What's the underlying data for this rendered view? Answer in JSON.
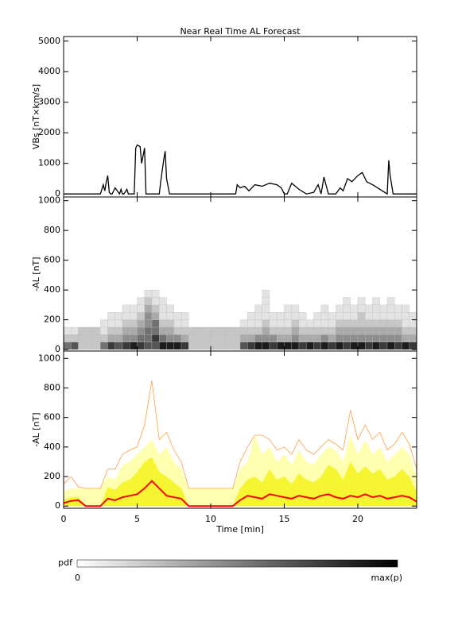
{
  "chart_data": [
    {
      "type": "line",
      "title": "Near Real Time AL Forecast",
      "ylabel": "VBs [nT×km/s]",
      "color": "#000000",
      "xlim": [
        0,
        24
      ],
      "ylim": [
        -100,
        5150
      ],
      "yticks": [
        0,
        1000,
        2000,
        3000,
        4000,
        5000
      ],
      "x": [
        0,
        2.5,
        2.7,
        2.8,
        2.9,
        3.0,
        3.1,
        3.2,
        3.3,
        3.5,
        3.8,
        3.9,
        4.0,
        4.1,
        4.3,
        4.4,
        4.5,
        4.8,
        4.9,
        5.0,
        5.2,
        5.3,
        5.5,
        5.6,
        5.7,
        6.5,
        6.6,
        6.8,
        6.9,
        7.0,
        7.2,
        11.7,
        11.8,
        12.0,
        12.3,
        12.6,
        13.0,
        13.5,
        14.0,
        14.5,
        14.8,
        15.0,
        15.2,
        15.5,
        16.0,
        16.5,
        17.0,
        17.3,
        17.5,
        17.7,
        18.0,
        18.5,
        18.8,
        19.0,
        19.3,
        19.6,
        20.0,
        20.3,
        20.6,
        21.0,
        21.5,
        22.0,
        22.1,
        22.2,
        22.4,
        22.6,
        23.5,
        24
      ],
      "values": [
        0,
        0,
        300,
        100,
        400,
        600,
        50,
        0,
        0,
        200,
        0,
        150,
        0,
        0,
        150,
        0,
        0,
        0,
        1500,
        1600,
        1550,
        1000,
        1500,
        0,
        0,
        0,
        400,
        1100,
        1400,
        500,
        0,
        0,
        300,
        200,
        250,
        100,
        300,
        250,
        350,
        300,
        200,
        0,
        0,
        350,
        150,
        0,
        50,
        300,
        0,
        550,
        0,
        0,
        200,
        100,
        500,
        400,
        600,
        700,
        400,
        300,
        150,
        0,
        1100,
        600,
        0,
        0,
        0,
        0
      ]
    },
    {
      "type": "heatmap",
      "ylabel": "-AL [nT]",
      "xlim": [
        0,
        24
      ],
      "ylim": [
        -10,
        1025
      ],
      "yticks": [
        0,
        200,
        400,
        600,
        800,
        1000
      ],
      "zlim": [
        0,
        9
      ],
      "x_bins": [
        0,
        0.5,
        1,
        1.5,
        2,
        2.5,
        3,
        3.5,
        4,
        4.5,
        5,
        5.5,
        6,
        6.5,
        7,
        7.5,
        8,
        8.5,
        9,
        9.5,
        10,
        10.5,
        11,
        11.5,
        12,
        12.5,
        13,
        13.5,
        14,
        14.5,
        15,
        15.5,
        16,
        16.5,
        17,
        17.5,
        18,
        18.5,
        19,
        19.5,
        20,
        20.5,
        21,
        21.5,
        22,
        22.5,
        23,
        23.5,
        24
      ],
      "y_bins": [
        0,
        50,
        100,
        150,
        200,
        250,
        300,
        350,
        400
      ],
      "values": [
        [
          5,
          2,
          1,
          0,
          0,
          0,
          0,
          0
        ],
        [
          6,
          2,
          1,
          0,
          0,
          0,
          0,
          0
        ],
        [
          2,
          2,
          2,
          0,
          0,
          0,
          0,
          0
        ],
        [
          2,
          2,
          2,
          0,
          0,
          0,
          0,
          0
        ],
        [
          2,
          2,
          2,
          0,
          0,
          0,
          0,
          0
        ],
        [
          5,
          2,
          1,
          1,
          0,
          0,
          0,
          0
        ],
        [
          7,
          3,
          2,
          1,
          1,
          0,
          0,
          0
        ],
        [
          6,
          3,
          2,
          1,
          1,
          0,
          0,
          0
        ],
        [
          7,
          4,
          3,
          2,
          1,
          1,
          0,
          0
        ],
        [
          8,
          4,
          3,
          2,
          1,
          1,
          0,
          0
        ],
        [
          7,
          5,
          4,
          3,
          2,
          1,
          1,
          0
        ],
        [
          6,
          5,
          5,
          4,
          4,
          3,
          2,
          1
        ],
        [
          6,
          7,
          5,
          5,
          3,
          2,
          1,
          1
        ],
        [
          8,
          5,
          3,
          2,
          1,
          1,
          1,
          0
        ],
        [
          8,
          4,
          3,
          2,
          1,
          1,
          0,
          0
        ],
        [
          8,
          4,
          2,
          1,
          1,
          0,
          0,
          0
        ],
        [
          7,
          3,
          2,
          1,
          1,
          0,
          0,
          0
        ],
        [
          2,
          2,
          2,
          0,
          0,
          0,
          0,
          0
        ],
        [
          2,
          2,
          2,
          0,
          0,
          0,
          0,
          0
        ],
        [
          2,
          2,
          2,
          0,
          0,
          0,
          0,
          0
        ],
        [
          2,
          2,
          2,
          0,
          0,
          0,
          0,
          0
        ],
        [
          2,
          2,
          2,
          0,
          0,
          0,
          0,
          0
        ],
        [
          2,
          2,
          2,
          0,
          0,
          0,
          0,
          0
        ],
        [
          2,
          2,
          2,
          0,
          0,
          0,
          0,
          0
        ],
        [
          6,
          3,
          2,
          1,
          0,
          0,
          0,
          0
        ],
        [
          7,
          3,
          2,
          1,
          1,
          0,
          0,
          0
        ],
        [
          8,
          4,
          2,
          1,
          1,
          1,
          0,
          0
        ],
        [
          8,
          4,
          3,
          2,
          1,
          1,
          1,
          1
        ],
        [
          7,
          4,
          2,
          1,
          1,
          0,
          0,
          0
        ],
        [
          8,
          3,
          2,
          1,
          1,
          0,
          0,
          0
        ],
        [
          8,
          3,
          2,
          1,
          1,
          1,
          0,
          0
        ],
        [
          8,
          4,
          3,
          2,
          1,
          1,
          0,
          0
        ],
        [
          7,
          3,
          2,
          1,
          1,
          0,
          0,
          0
        ],
        [
          8,
          3,
          2,
          1,
          0,
          0,
          0,
          0
        ],
        [
          7,
          3,
          2,
          1,
          1,
          0,
          0,
          0
        ],
        [
          8,
          4,
          2,
          1,
          1,
          1,
          0,
          0
        ],
        [
          7,
          3,
          2,
          1,
          1,
          0,
          0,
          0
        ],
        [
          8,
          4,
          3,
          2,
          1,
          1,
          0,
          0
        ],
        [
          7,
          4,
          3,
          2,
          1,
          1,
          1,
          0
        ],
        [
          8,
          4,
          3,
          2,
          1,
          1,
          0,
          0
        ],
        [
          8,
          4,
          3,
          2,
          2,
          1,
          1,
          0
        ],
        [
          7,
          4,
          3,
          2,
          1,
          1,
          0,
          0
        ],
        [
          8,
          4,
          3,
          2,
          1,
          1,
          1,
          0
        ],
        [
          7,
          4,
          3,
          2,
          1,
          1,
          0,
          0
        ],
        [
          8,
          4,
          3,
          2,
          1,
          1,
          1,
          0
        ],
        [
          7,
          4,
          3,
          2,
          1,
          1,
          0,
          0
        ],
        [
          8,
          3,
          2,
          1,
          1,
          1,
          0,
          0
        ],
        [
          7,
          3,
          2,
          1,
          1,
          0,
          0,
          0
        ]
      ],
      "colorbar": {
        "label": "pdf",
        "min_label": "0",
        "max_label": "max(p)"
      }
    },
    {
      "type": "band",
      "ylabel": "-AL [nT]",
      "xlabel": "Time [min]",
      "xlim": [
        0,
        24
      ],
      "ylim": [
        -15,
        1050
      ],
      "xticks": [
        0,
        5,
        10,
        15,
        20
      ],
      "yticks": [
        0,
        200,
        400,
        600,
        800,
        1000
      ],
      "x": [
        0,
        0.5,
        1,
        1.5,
        2,
        2.5,
        3,
        3.5,
        4,
        4.5,
        5,
        5.5,
        6,
        6.5,
        7,
        7.5,
        8,
        8.5,
        9,
        9.5,
        10,
        10.5,
        11,
        11.5,
        12,
        12.5,
        13,
        13.5,
        14,
        14.5,
        15,
        15.5,
        16,
        16.5,
        17,
        17.5,
        18,
        18.5,
        19,
        19.5,
        20,
        20.5,
        21,
        21.5,
        22,
        22.5,
        23,
        23.5,
        24
      ],
      "series": [
        {
          "style": "area",
          "color": "#ffffb0",
          "values": [
            100,
            120,
            120,
            120,
            120,
            120,
            200,
            180,
            280,
            300,
            350,
            400,
            450,
            350,
            400,
            300,
            250,
            120,
            120,
            120,
            120,
            120,
            120,
            120,
            250,
            300,
            480,
            350,
            400,
            300,
            350,
            280,
            380,
            300,
            280,
            350,
            400,
            380,
            300,
            480,
            350,
            450,
            350,
            400,
            300,
            350,
            400,
            350,
            200
          ]
        },
        {
          "style": "area",
          "color": "#f5f532",
          "values": [
            40,
            60,
            60,
            0,
            0,
            0,
            130,
            110,
            160,
            180,
            230,
            300,
            330,
            230,
            200,
            160,
            120,
            0,
            0,
            0,
            0,
            0,
            0,
            0,
            120,
            180,
            200,
            160,
            250,
            180,
            200,
            150,
            220,
            180,
            160,
            200,
            280,
            250,
            180,
            300,
            220,
            270,
            220,
            250,
            180,
            200,
            250,
            200,
            100
          ]
        },
        {
          "style": "line",
          "color": "#ffa040",
          "values": [
            150,
            200,
            130,
            120,
            120,
            120,
            250,
            250,
            350,
            380,
            400,
            550,
            850,
            450,
            500,
            380,
            300,
            120,
            120,
            120,
            120,
            120,
            120,
            120,
            300,
            400,
            480,
            480,
            450,
            380,
            400,
            350,
            450,
            380,
            350,
            400,
            450,
            420,
            380,
            650,
            450,
            550,
            450,
            500,
            380,
            420,
            500,
            420,
            250
          ]
        },
        {
          "style": "line",
          "color": "#ff0000",
          "values": [
            20,
            35,
            40,
            0,
            0,
            0,
            50,
            40,
            60,
            70,
            80,
            120,
            170,
            120,
            70,
            60,
            50,
            0,
            0,
            0,
            0,
            0,
            0,
            0,
            40,
            70,
            60,
            50,
            80,
            70,
            60,
            50,
            70,
            60,
            50,
            70,
            80,
            60,
            50,
            70,
            60,
            80,
            60,
            70,
            50,
            60,
            70,
            60,
            30
          ]
        }
      ]
    }
  ]
}
